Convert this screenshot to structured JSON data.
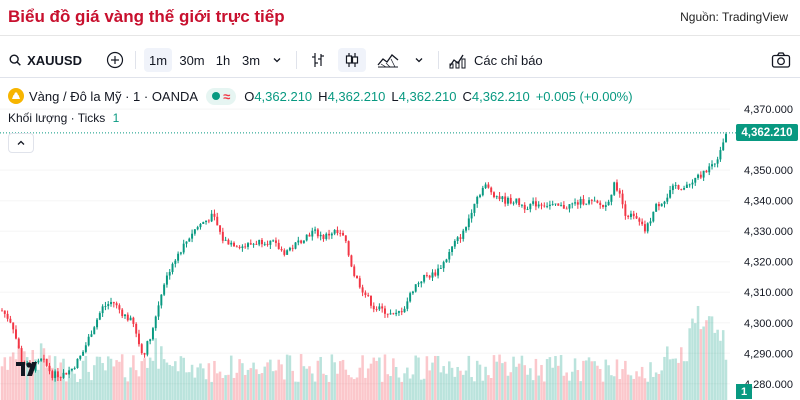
{
  "page": {
    "title": "Biểu đồ giá vàng thế giới trực tiếp",
    "source": "Nguồn: TradingView"
  },
  "toolbar": {
    "symbol": "XAUUSD",
    "intervals": [
      "1m",
      "30m",
      "1h",
      "3m"
    ],
    "selected_interval": "1m",
    "indicators_label": "Các chỉ báo"
  },
  "legend": {
    "name": "Vàng / Đô la Mỹ · 1 · OANDA",
    "o_key": "O",
    "o": "4,362.210",
    "h_key": "H",
    "h": "4,362.210",
    "l_key": "L",
    "l": "4,362.210",
    "c_key": "C",
    "c": "4,362.210",
    "change": "+0.005 (+0.00%)"
  },
  "volume_legend": {
    "label": "Khối lượng · Ticks",
    "value": "1"
  },
  "price_axis": {
    "ticks": [
      "4,370.000",
      "4,350.000",
      "4,340.000",
      "4,330.000",
      "4,320.000",
      "4,310.000",
      "4,300.000",
      "4,290.000",
      "4,280.000"
    ],
    "last_price": "4,362.210",
    "last_volume": "1"
  },
  "colors": {
    "up": "#089981",
    "down": "#f23645",
    "title": "#c8102e"
  },
  "chart_data": {
    "type": "candlestick",
    "x": [
      0,
      10,
      20,
      30,
      40,
      50,
      60,
      70,
      80,
      90,
      100,
      110,
      120,
      130,
      140,
      150,
      160,
      170,
      180,
      190,
      200,
      210,
      220,
      230,
      240,
      250,
      260,
      270,
      280,
      290,
      300,
      310,
      320,
      330,
      340,
      350,
      360,
      370,
      380,
      390,
      400,
      410,
      420,
      430,
      440,
      450,
      460,
      470,
      480,
      490,
      500,
      510,
      520,
      530,
      540,
      550,
      560,
      570,
      580,
      590,
      600,
      610,
      620,
      630,
      640,
      650,
      660,
      670,
      680,
      690,
      700,
      710,
      720
    ],
    "close": [
      4304,
      4300,
      4287,
      4285,
      4288,
      4283,
      4283,
      4285,
      4290,
      4298,
      4305,
      4307,
      4303,
      4300,
      4289,
      4298,
      4312,
      4320,
      4325,
      4330,
      4333,
      4335,
      4327,
      4326,
      4325,
      4326,
      4327,
      4326,
      4323,
      4325,
      4328,
      4330,
      4328,
      4330,
      4328,
      4316,
      4310,
      4305,
      4304,
      4302,
      4305,
      4312,
      4315,
      4316,
      4320,
      4326,
      4330,
      4340,
      4345,
      4342,
      4340,
      4340,
      4338,
      4339,
      4339,
      4338,
      4338,
      4339,
      4340,
      4339,
      4338,
      4346,
      4336,
      4334,
      4330,
      4338,
      4341,
      4345,
      4344,
      4347,
      4350,
      4353,
      4362
    ],
    "ylim": [
      4276,
      4373
    ]
  }
}
